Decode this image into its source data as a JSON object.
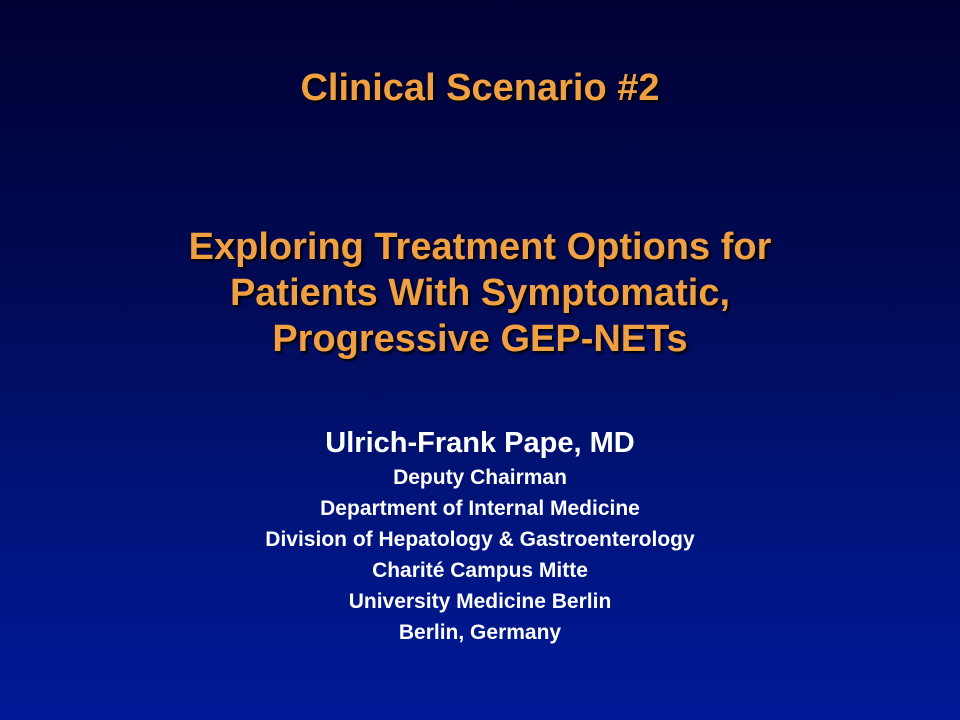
{
  "slide": {
    "scenario": "Clinical Scenario #2",
    "title_lines": [
      "Exploring Treatment Options for",
      "Patients With Symptomatic,",
      "Progressive GEP-NETs"
    ],
    "presenter": {
      "name": "Ulrich-Frank Pape, MD",
      "affiliation_lines": [
        "Deputy Chairman",
        "Department of Internal Medicine",
        "Division of Hepatology & Gastroenterology",
        "Charité Campus Mitte",
        "University Medicine Berlin",
        "Berlin, Germany"
      ]
    }
  },
  "colors": {
    "background_top": "#000033",
    "background_bottom": "#001a99",
    "title_text": "#f0a040",
    "presenter_text": "#ffffff"
  }
}
